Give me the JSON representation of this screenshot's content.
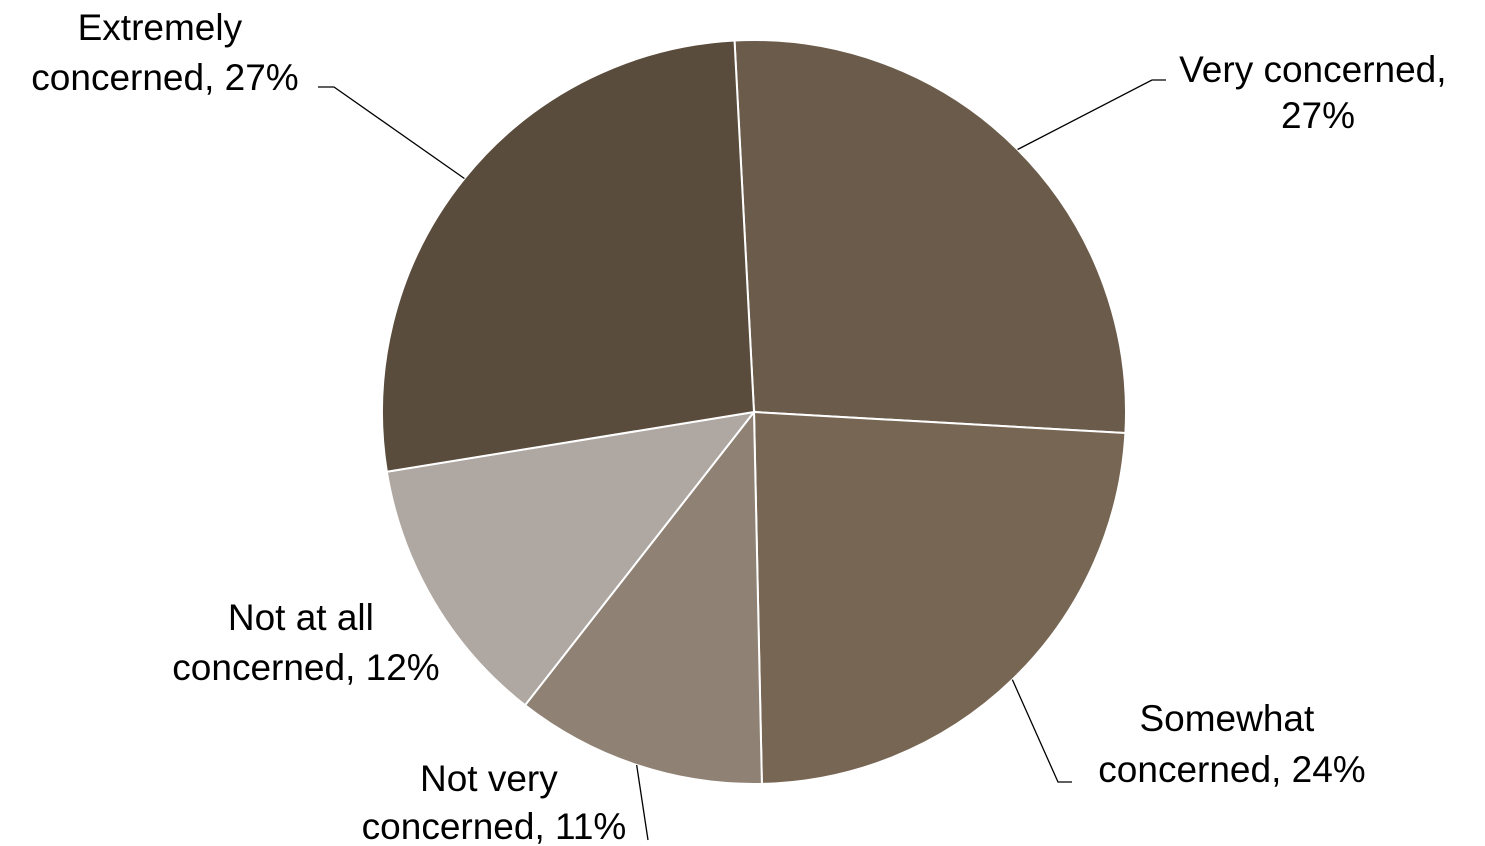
{
  "chart_data": {
    "type": "pie",
    "title": "",
    "slices": [
      {
        "category": "Very concerned",
        "value": 27,
        "label_line1": "Very concerned,",
        "label_line2": "27%",
        "color": "#6B5B4A"
      },
      {
        "category": "Somewhat concerned",
        "value": 24,
        "label_line1": "Somewhat",
        "label_line2": "concerned, 24%",
        "color": "#776654"
      },
      {
        "category": "Not very concerned",
        "value": 11,
        "label_line1": "Not very",
        "label_line2": "concerned, 11%",
        "color": "#8F8275"
      },
      {
        "category": "Not at all concerned",
        "value": 12,
        "label_line1": "Not at all",
        "label_line2": "concerned, 12%",
        "color": "#AFA8A2"
      },
      {
        "category": "Extremely concerned",
        "value": 27,
        "label_line1": "Extremely",
        "label_line2": "concerned, 27%",
        "color": "#5A4C3C"
      }
    ],
    "legend": "none",
    "data_labels": "category, percentage"
  }
}
